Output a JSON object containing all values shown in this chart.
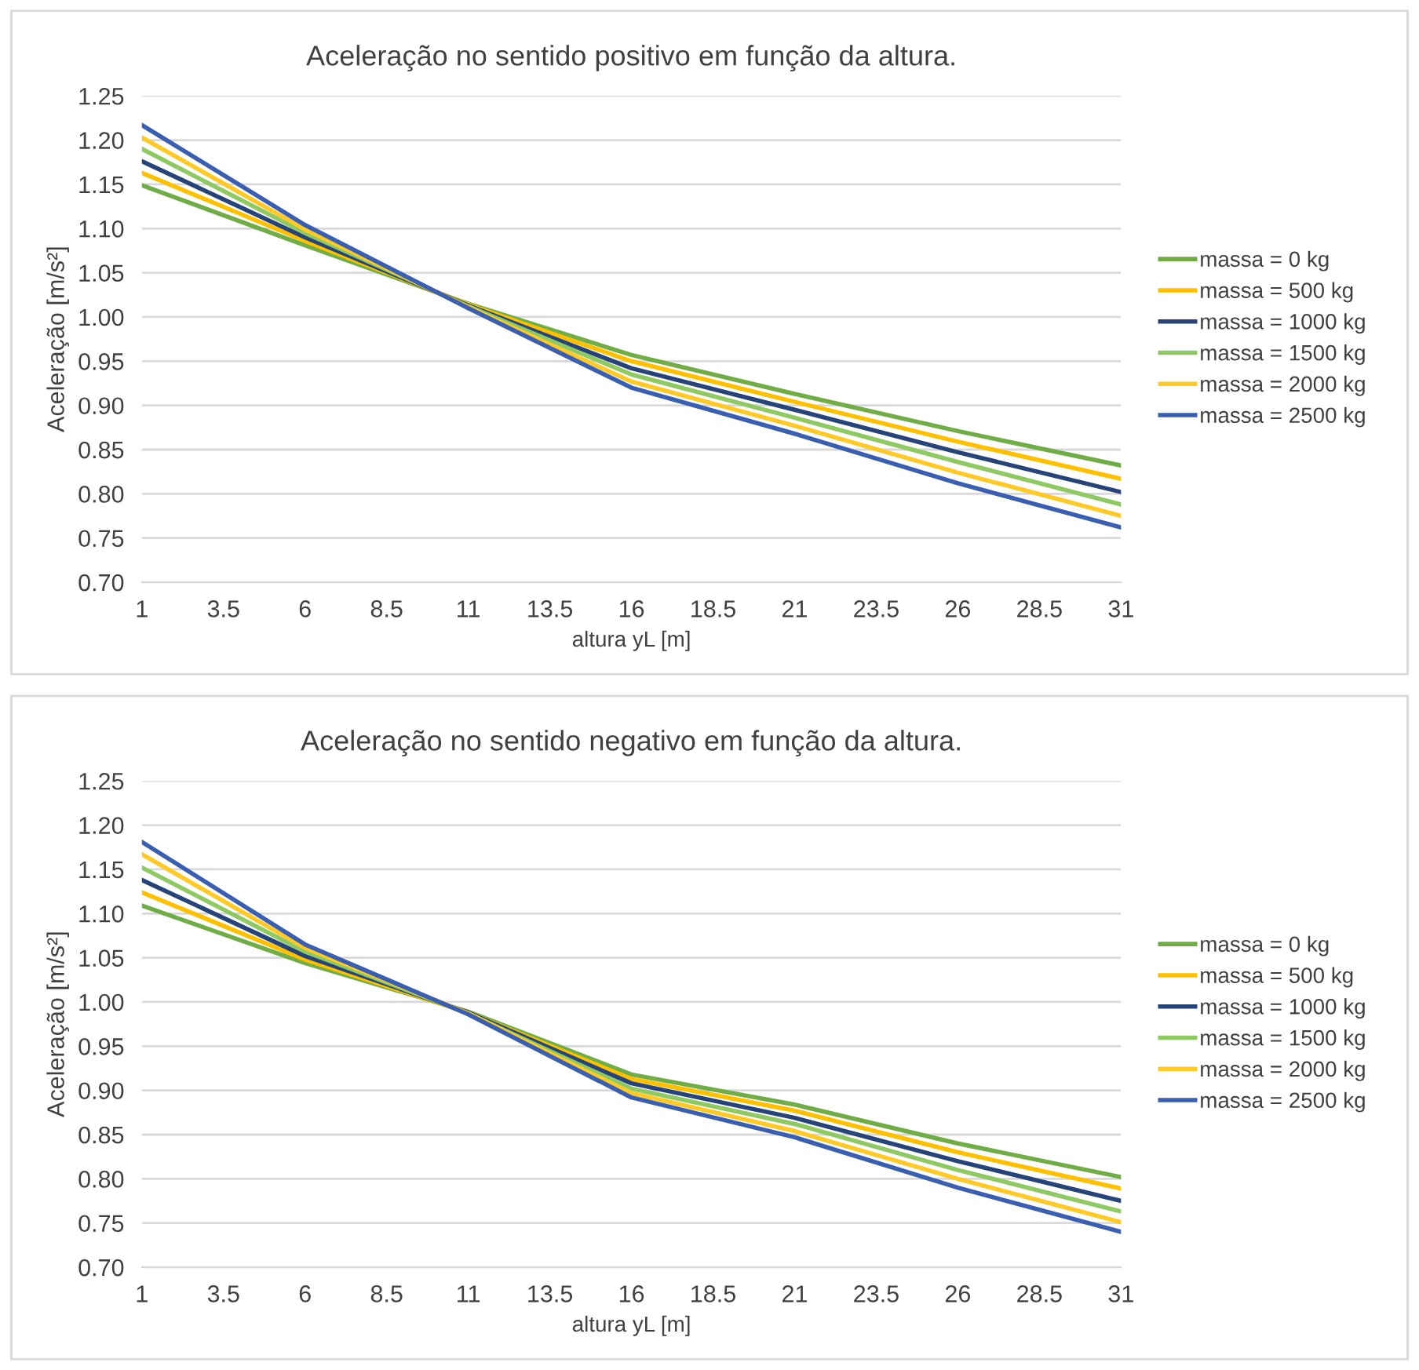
{
  "chart_data": [
    {
      "type": "line",
      "title": "Aceleração no sentido positivo em função da altura.",
      "xlabel": "altura yL [m]",
      "ylabel": "Aceleração [m/s²]",
      "x": [
        1,
        6,
        11,
        16,
        21,
        26,
        31
      ],
      "xlim": [
        1,
        31
      ],
      "xticks": [
        1,
        3.5,
        6,
        8.5,
        11,
        13.5,
        16,
        18.5,
        21,
        23.5,
        26,
        28.5,
        31
      ],
      "ylim": [
        0.7,
        1.25
      ],
      "yticks": [
        {
          "value": 0.7,
          "label": "0.70"
        },
        {
          "value": 0.75,
          "label": "0.75"
        },
        {
          "value": 0.8,
          "label": "0.80"
        },
        {
          "value": 0.85,
          "label": "0.85"
        },
        {
          "value": 0.9,
          "label": "0.90"
        },
        {
          "value": 0.95,
          "label": "0.95"
        },
        {
          "value": 1.0,
          "label": "1.00"
        },
        {
          "value": 1.05,
          "label": "1.05"
        },
        {
          "value": 1.1,
          "label": "1.10"
        },
        {
          "value": 1.15,
          "label": "1.15"
        },
        {
          "value": 1.2,
          "label": "1.20"
        },
        {
          "value": 1.25,
          "label": "1.25"
        }
      ],
      "grid": "y",
      "legend": "right",
      "series": [
        {
          "name": "massa = 0 kg",
          "color": "#70ad47",
          "values": [
            1.149,
            1.081,
            1.015,
            0.957,
            0.913,
            0.871,
            0.832
          ]
        },
        {
          "name": "massa = 500 kg",
          "color": "#ffc000",
          "values": [
            1.163,
            1.086,
            1.014,
            0.95,
            0.904,
            0.859,
            0.817
          ]
        },
        {
          "name": "massa = 1000 kg",
          "color": "#264478",
          "values": [
            1.176,
            1.09,
            1.013,
            0.942,
            0.895,
            0.847,
            0.802
          ]
        },
        {
          "name": "massa = 1500 kg",
          "color": "#8fc963",
          "values": [
            1.19,
            1.095,
            1.012,
            0.935,
            0.886,
            0.836,
            0.788
          ]
        },
        {
          "name": "massa = 2000 kg",
          "color": "#ffca28",
          "values": [
            1.203,
            1.099,
            1.011,
            0.927,
            0.877,
            0.824,
            0.775
          ]
        },
        {
          "name": "massa = 2500 kg",
          "color": "#3a5fb0",
          "values": [
            1.217,
            1.104,
            1.01,
            0.92,
            0.868,
            0.812,
            0.762
          ]
        }
      ]
    },
    {
      "type": "line",
      "title": "Aceleração no sentido negativo em função da altura.",
      "xlabel": "altura yL [m]",
      "ylabel": "Aceleração [m/s²]",
      "x": [
        1,
        6,
        11,
        16,
        21,
        26,
        31
      ],
      "xlim": [
        1,
        31
      ],
      "xticks": [
        1,
        3.5,
        6,
        8.5,
        11,
        13.5,
        16,
        18.5,
        21,
        23.5,
        26,
        28.5,
        31
      ],
      "ylim": [
        0.7,
        1.25
      ],
      "yticks": [
        {
          "value": 0.7,
          "label": "0.70"
        },
        {
          "value": 0.75,
          "label": "0.75"
        },
        {
          "value": 0.8,
          "label": "0.80"
        },
        {
          "value": 0.85,
          "label": "0.85"
        },
        {
          "value": 0.9,
          "label": "0.90"
        },
        {
          "value": 0.95,
          "label": "0.95"
        },
        {
          "value": 1.0,
          "label": "1.00"
        },
        {
          "value": 1.05,
          "label": "1.05"
        },
        {
          "value": 1.1,
          "label": "1.10"
        },
        {
          "value": 1.15,
          "label": "1.15"
        },
        {
          "value": 1.2,
          "label": "1.20"
        },
        {
          "value": 1.25,
          "label": "1.25"
        }
      ],
      "grid": "y",
      "legend": "right",
      "series": [
        {
          "name": "massa = 0 kg",
          "color": "#70ad47",
          "values": [
            1.109,
            1.044,
            0.989,
            0.918,
            0.884,
            0.84,
            0.802
          ]
        },
        {
          "name": "massa = 500 kg",
          "color": "#ffc000",
          "values": [
            1.124,
            1.048,
            0.988,
            0.913,
            0.877,
            0.83,
            0.789
          ]
        },
        {
          "name": "massa = 1000 kg",
          "color": "#264478",
          "values": [
            1.138,
            1.052,
            0.988,
            0.908,
            0.869,
            0.82,
            0.775
          ]
        },
        {
          "name": "massa = 1500 kg",
          "color": "#8fc963",
          "values": [
            1.152,
            1.057,
            0.987,
            0.902,
            0.862,
            0.81,
            0.763
          ]
        },
        {
          "name": "massa = 2000 kg",
          "color": "#ffca28",
          "values": [
            1.167,
            1.061,
            0.987,
            0.897,
            0.854,
            0.8,
            0.751
          ]
        },
        {
          "name": "massa = 2500 kg",
          "color": "#3a5fb0",
          "values": [
            1.181,
            1.065,
            0.986,
            0.892,
            0.847,
            0.79,
            0.74
          ]
        }
      ]
    }
  ]
}
